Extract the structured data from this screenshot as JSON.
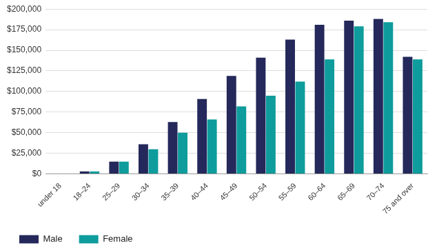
{
  "chart_data": {
    "type": "bar",
    "categories": [
      "under 18",
      "18–24",
      "25–29",
      "30–34",
      "35–39",
      "40–44",
      "45–49",
      "50–54",
      "55–59",
      "60–64",
      "65–69",
      "70–74",
      "75 and over"
    ],
    "series": [
      {
        "name": "Male",
        "color": "#24285a",
        "values": [
          500,
          3000,
          15000,
          36000,
          63000,
          91000,
          119000,
          141000,
          163000,
          181000,
          186000,
          188000,
          142000
        ]
      },
      {
        "name": "Female",
        "color": "#0e9c9c",
        "values": [
          400,
          3000,
          15000,
          30000,
          50000,
          66000,
          82000,
          95000,
          112000,
          139000,
          179000,
          184000,
          139000
        ]
      }
    ],
    "ylim": [
      0,
      200000
    ],
    "yticks": [
      {
        "value": 0,
        "label": "$0"
      },
      {
        "value": 25000,
        "label": "$25,000"
      },
      {
        "value": 50000,
        "label": "$50,000"
      },
      {
        "value": 75000,
        "label": "$75,000"
      },
      {
        "value": 100000,
        "label": "$100,000"
      },
      {
        "value": 125000,
        "label": "$125,000"
      },
      {
        "value": 150000,
        "label": "$150,000"
      },
      {
        "value": 175000,
        "label": "$175,000"
      },
      {
        "value": 200000,
        "label": "$200,000"
      }
    ],
    "grid": true,
    "legend": "bottom-left"
  }
}
